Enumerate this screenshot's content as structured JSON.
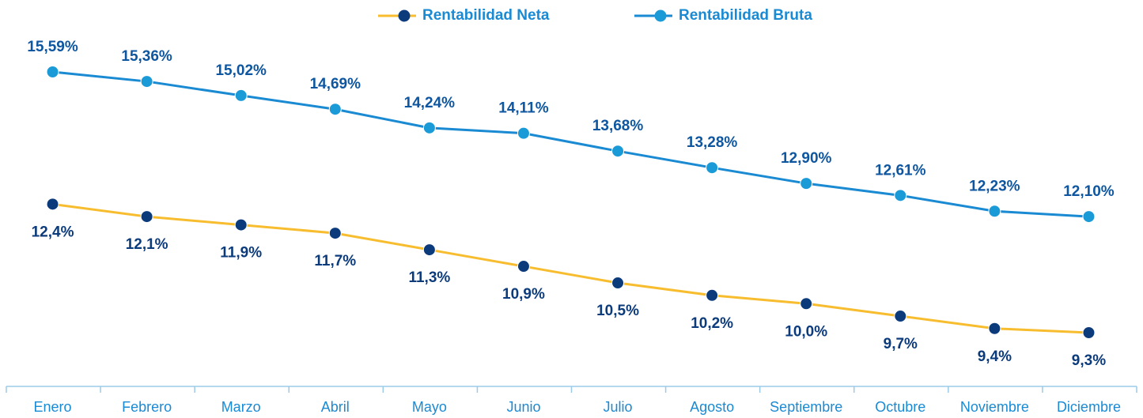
{
  "chart_data": {
    "type": "line",
    "categories": [
      "Enero",
      "Febrero",
      "Marzo",
      "Abril",
      "Mayo",
      "Junio",
      "Julio",
      "Agosto",
      "Septiembre",
      "Octubre",
      "Noviembre",
      "Diciembre"
    ],
    "series": [
      {
        "name": "Rentabilidad Neta",
        "color": "#f7bd2f",
        "marker_color": "#0c3b7c",
        "label_color": "#0c3b7c",
        "label_position": "below",
        "values": [
          12.4,
          12.1,
          11.9,
          11.7,
          11.3,
          10.9,
          10.5,
          10.2,
          10.0,
          9.7,
          9.4,
          9.3
        ],
        "value_labels": [
          "12,4%",
          "12,1%",
          "11,9%",
          "11,7%",
          "11,3%",
          "10,9%",
          "10,5%",
          "10,2%",
          "10,0%",
          "9,7%",
          "9,4%",
          "9,3%"
        ]
      },
      {
        "name": "Rentabilidad Bruta",
        "color": "#1a8ad3",
        "marker_color": "#1b9ad8",
        "label_color": "#0e56a0",
        "label_position": "above",
        "values": [
          15.59,
          15.36,
          15.02,
          14.69,
          14.24,
          14.11,
          13.68,
          13.28,
          12.9,
          12.61,
          12.23,
          12.1
        ],
        "value_labels": [
          "15,59%",
          "15,36%",
          "15,02%",
          "14,69%",
          "14,24%",
          "14,11%",
          "13,68%",
          "13,28%",
          "12,90%",
          "12,61%",
          "12,23%",
          "12,10%"
        ]
      }
    ],
    "legend": "top"
  }
}
